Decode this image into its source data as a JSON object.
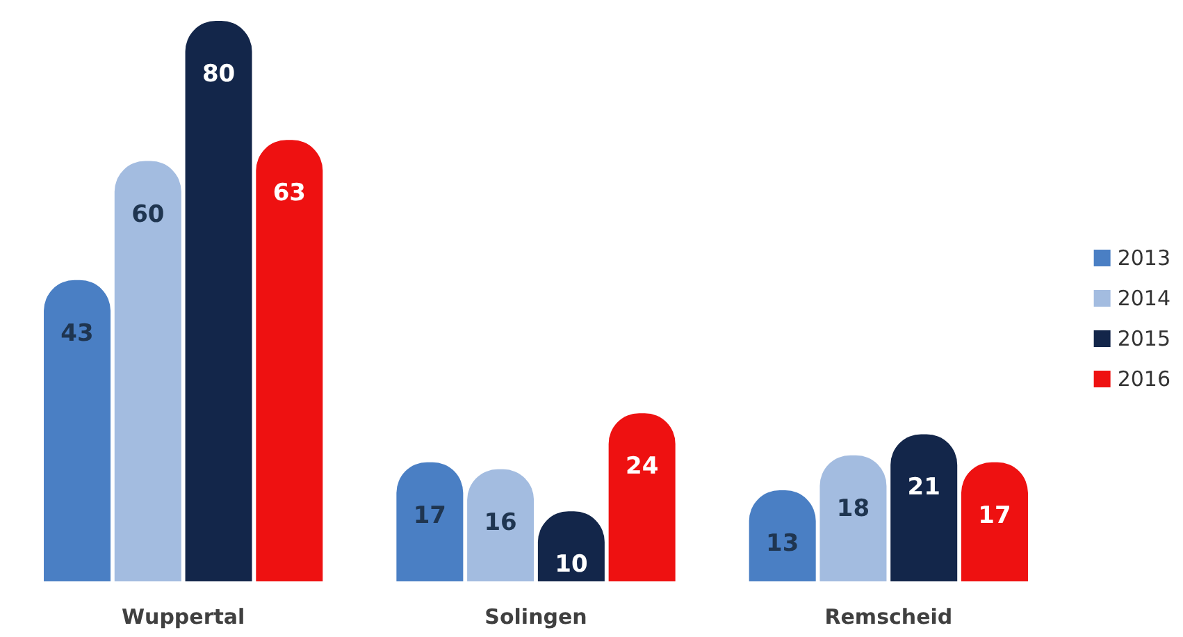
{
  "chart_data": {
    "type": "bar",
    "categories": [
      "Wuppertal",
      "Solingen",
      "Remscheid"
    ],
    "series": [
      {
        "name": "2013",
        "color": "#4a7fc4",
        "values": [
          43,
          17,
          13
        ]
      },
      {
        "name": "2014",
        "color": "#a3bce0",
        "values": [
          60,
          16,
          18
        ]
      },
      {
        "name": "2015",
        "color": "#13264a",
        "values": [
          80,
          10,
          21
        ]
      },
      {
        "name": "2016",
        "color": "#ee1111",
        "values": [
          63,
          24,
          17
        ]
      }
    ],
    "data_labels": true,
    "legend": "right"
  }
}
